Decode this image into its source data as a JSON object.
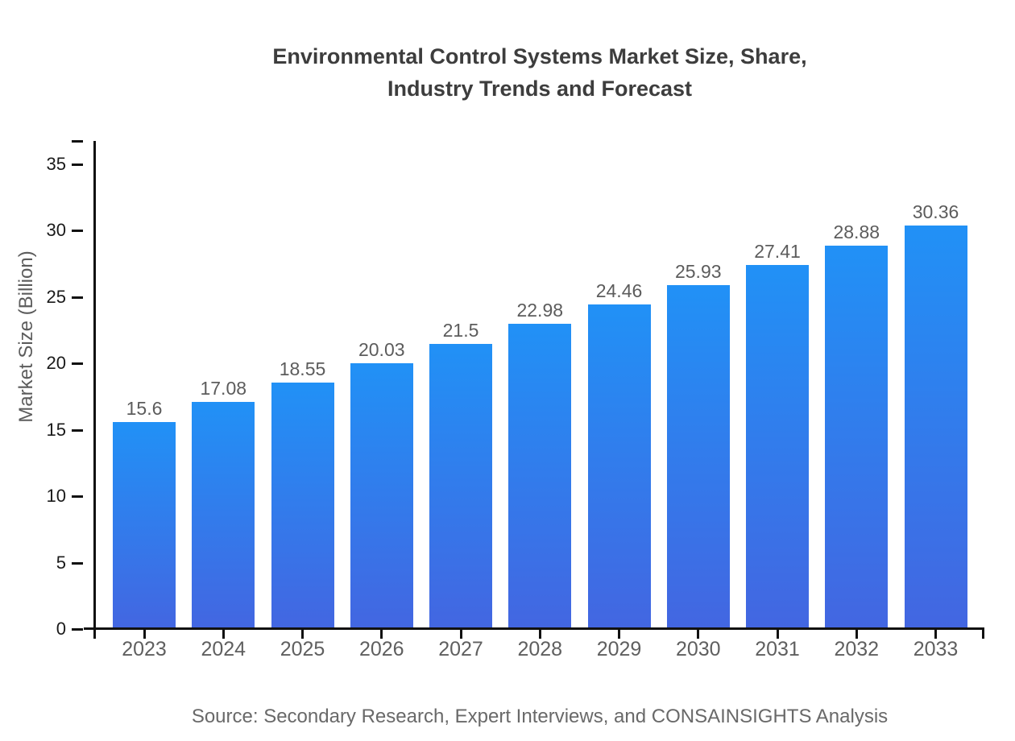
{
  "header": {
    "title_line1": "Environmental Control Systems Market Size, Share,",
    "title_line2": "Industry Trends and Forecast"
  },
  "footer": {
    "source_text": "Source: Secondary Research, Expert Interviews, and CONSAINSIGHTS Analysis"
  },
  "chart_data": {
    "type": "bar",
    "title": "Environmental Control Systems Market Size, Share, Industry Trends and Forecast",
    "xlabel": "",
    "ylabel": "Market Size (Billion)",
    "categories": [
      "2023",
      "2024",
      "2025",
      "2026",
      "2027",
      "2028",
      "2029",
      "2030",
      "2031",
      "2032",
      "2033"
    ],
    "values": [
      15.6,
      17.08,
      18.55,
      20.03,
      21.5,
      22.98,
      24.46,
      25.93,
      27.41,
      28.88,
      30.36
    ],
    "value_labels": [
      "15.6",
      "17.08",
      "18.55",
      "20.03",
      "21.5",
      "22.98",
      "24.46",
      "25.93",
      "27.41",
      "28.88",
      "30.36"
    ],
    "ylim": [
      0,
      35
    ],
    "yticks": [
      0,
      5,
      10,
      15,
      20,
      25,
      30,
      35
    ],
    "grid": false,
    "legend_position": "none",
    "colors": {
      "bar_gradient_top": "#2191f6",
      "bar_gradient_bottom": "#4366e1",
      "axis": "#111111",
      "title_text": "#3d3d3d",
      "y_tick_label": "#1a1a1a",
      "x_tick_label": "#5f5f5f",
      "value_label": "#5c5c5c",
      "axis_label": "#5c5c5c",
      "source_text": "#696969",
      "background": "#ffffff"
    }
  }
}
